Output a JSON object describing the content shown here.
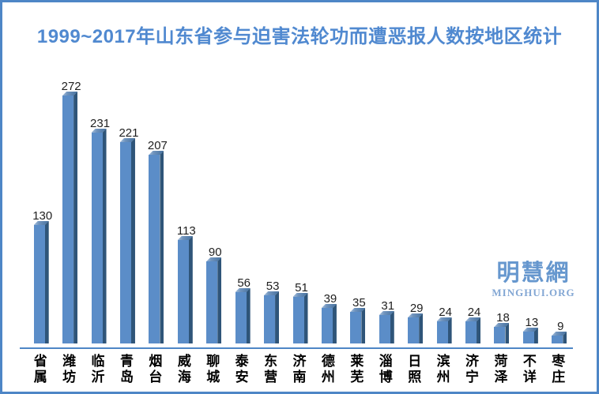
{
  "title": "1999~2017年山东省参与迫害法轮功而遭恶报人数按地区统计",
  "watermark": {
    "name": "明慧網",
    "domain": "MINGHUI.ORG"
  },
  "colors": {
    "frame_and_axis": "#4e86c6",
    "title_text": "#5089d0",
    "bar_face": "#5b8dc8",
    "bar_top": "#44709e",
    "bar_side": "#2f5579",
    "value_text": "#1f1f1f",
    "watermark_text": "#6697ce"
  },
  "chart_data": {
    "type": "bar",
    "title": "1999~2017年山东省参与迫害法轮功而遭恶报人数按地区统计",
    "categories": [
      "省属",
      "潍坊",
      "临沂",
      "青岛",
      "烟台",
      "威海",
      "聊城",
      "泰安",
      "东营",
      "济南",
      "德州",
      "莱芜",
      "淄博",
      "日照",
      "滨州",
      "济宁",
      "菏泽",
      "不详",
      "枣庄"
    ],
    "values": [
      130,
      272,
      231,
      221,
      207,
      113,
      90,
      56,
      53,
      51,
      39,
      35,
      31,
      29,
      24,
      24,
      18,
      13,
      9
    ],
    "xlabel": "",
    "ylabel": "",
    "ylim": [
      0,
      280
    ],
    "grid": false,
    "legend": null,
    "y_axis_shown": false,
    "data_labels_shown": true,
    "bar_style": "3d-box"
  }
}
